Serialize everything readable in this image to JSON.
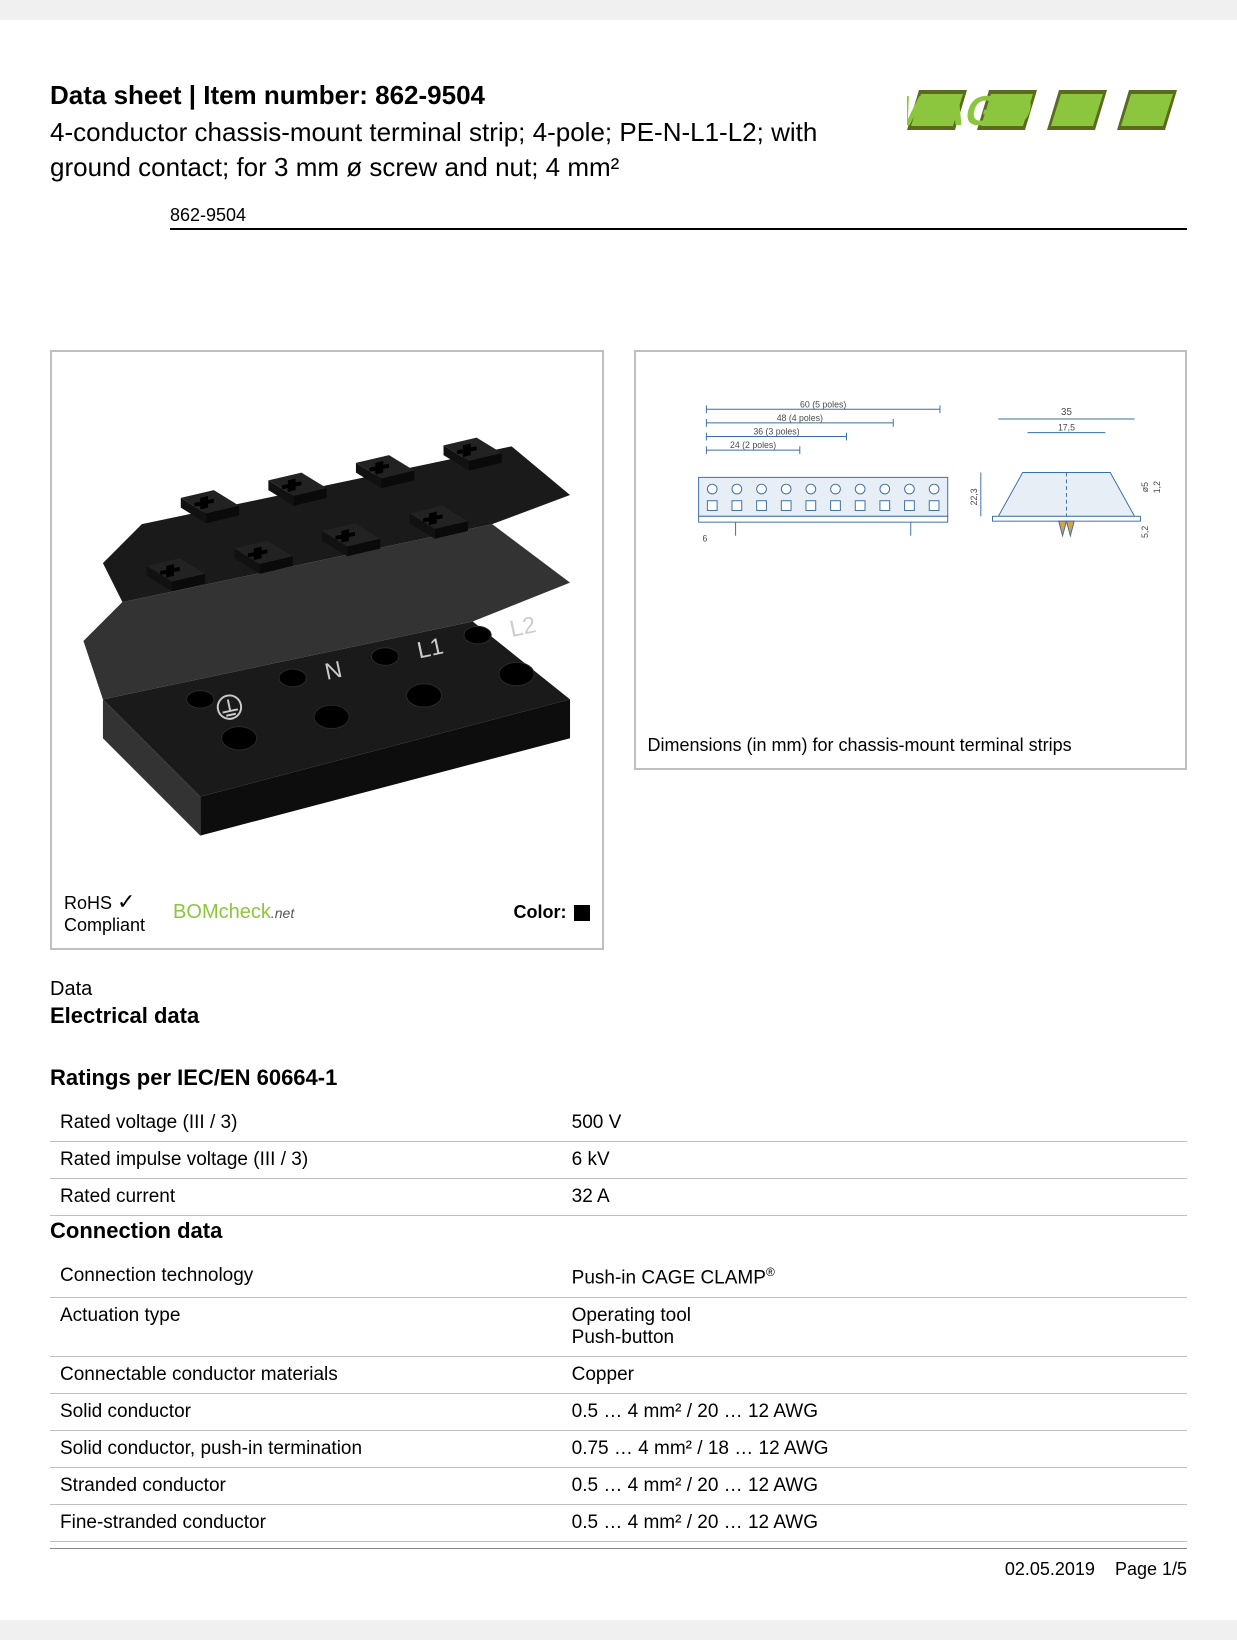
{
  "header": {
    "title": "Data sheet  |  Item number: 862-9504",
    "description": "4-conductor chassis-mount terminal strip; 4-pole; PE-N-L1-L2; with ground contact; for 3 mm ø screw and nut; 4 mm²",
    "part_pill": "862-9504",
    "logo": {
      "text": "WAGO",
      "green": "#8cc63f",
      "dark": "#5a6b1f"
    }
  },
  "product_figure": {
    "terminal_color": "#1a1a1a",
    "terminal_edge": "#333333",
    "hole_color": "#000000",
    "markings": [
      "N",
      "L1",
      "L2"
    ],
    "marking_color": "#cccccc",
    "compliance": {
      "rohs_line1": "RoHS",
      "rohs_line2": "Compliant",
      "bomcheck": "BOMcheck",
      "bomcheck_suffix": ".net",
      "color_label": "Color:",
      "color_hex": "#000000"
    }
  },
  "dimension_figure": {
    "caption": "Dimensions (in mm) for chassis-mount terminal strips",
    "colors": {
      "line": "#3a6fa6",
      "fill": "#e8eef5",
      "text": "#4a4a4a",
      "pin": "#d9a24a"
    },
    "top_view": {
      "widths": [
        {
          "label": "60 (5 poles)",
          "value": 60
        },
        {
          "label": "48 (4 poles)",
          "value": 48
        },
        {
          "label": "36 (3 poles)",
          "value": 36
        },
        {
          "label": "24 (2 poles)",
          "value": 24
        }
      ],
      "base_offset_label": "6",
      "poles": 10
    },
    "side_view": {
      "width_label": "35",
      "inner_label": "17,5",
      "height_label": "22,3",
      "hole_label": "ø5",
      "hole_thick_label": "1,2",
      "pin_depth_label": "5,2"
    }
  },
  "data_label": "Data",
  "sections": [
    {
      "title": "Electrical data",
      "subs": [
        {
          "title": "Ratings per IEC/EN 60664-1",
          "rows": [
            {
              "label": "Rated voltage (III / 3)",
              "value": "500 V"
            },
            {
              "label": "Rated impulse voltage (III / 3)",
              "value": "6 kV"
            },
            {
              "label": "Rated current",
              "value": "32 A"
            }
          ]
        }
      ]
    },
    {
      "title": "Connection data",
      "subs": [
        {
          "title": "",
          "rows": [
            {
              "label": "Connection technology",
              "value": "Push-in CAGE CLAMP",
              "sup": "®"
            },
            {
              "label": "Actuation type",
              "value": "Operating tool\nPush-button"
            },
            {
              "label": "Connectable conductor materials",
              "value": "Copper"
            },
            {
              "label": "Solid conductor",
              "value": "0.5 … 4 mm² / 20 … 12 AWG"
            },
            {
              "label": "Solid conductor, push-in termination",
              "value": "0.75 … 4 mm² / 18 … 12 AWG"
            },
            {
              "label": "Stranded conductor",
              "value": "0.5 … 4 mm² / 20 … 12 AWG"
            },
            {
              "label": "Fine-stranded conductor",
              "value": "0.5 … 4 mm² / 20 … 12 AWG"
            }
          ]
        }
      ]
    }
  ],
  "footer": {
    "date": "02.05.2019",
    "page": "Page 1/5"
  }
}
